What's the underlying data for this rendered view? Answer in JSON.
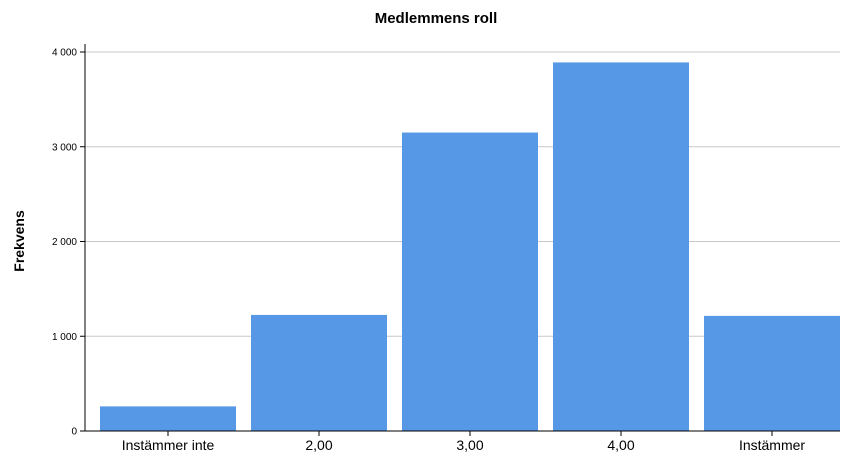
{
  "chart_data": {
    "type": "bar",
    "title": "Medlemmens roll",
    "xlabel": "",
    "ylabel": "Frekvens",
    "categories": [
      "Instämmer inte",
      "2,00",
      "3,00",
      "4,00",
      "Instämmer"
    ],
    "values": [
      260,
      1225,
      3150,
      3890,
      1215
    ],
    "ylim": [
      0,
      4000
    ],
    "yticks": [
      0,
      1000,
      2000,
      3000,
      4000
    ],
    "ytick_labels": [
      "0",
      "1 000",
      "2 000",
      "3 000",
      "4 000"
    ],
    "grid": true,
    "bar_color": "#5698e6"
  }
}
